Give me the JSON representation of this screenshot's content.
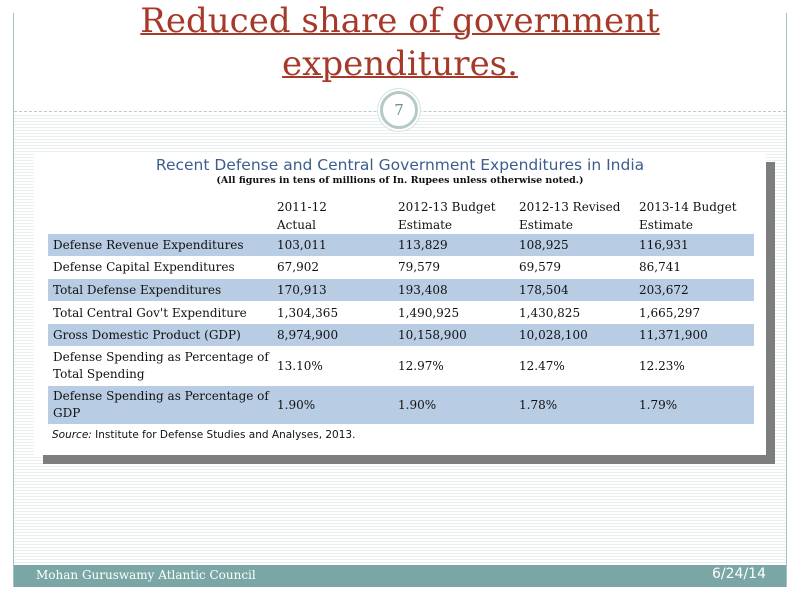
{
  "slide": {
    "title_line1": "Reduced share of government",
    "title_line2": "expenditures.",
    "page_number": "7"
  },
  "table": {
    "title": "Recent Defense and Central Government Expenditures in India",
    "subtitle": "(All figures in tens of millions of In. Rupees unless otherwise noted.)",
    "columns": [
      {
        "line1": "2011-12",
        "line2": "Actual"
      },
      {
        "line1": "2012-13 Budget",
        "line2": "Estimate"
      },
      {
        "line1": "2012-13 Revised",
        "line2": "Estimate"
      },
      {
        "line1": "2013-14 Budget",
        "line2": "Estimate"
      }
    ],
    "rows": [
      {
        "label": "Defense Revenue Expenditures",
        "values": [
          "103,011",
          "113,829",
          "108,925",
          "116,931"
        ]
      },
      {
        "label": "Defense Capital Expenditures",
        "values": [
          "67,902",
          "79,579",
          "69,579",
          "86,741"
        ]
      },
      {
        "label": "Total Defense Expenditures",
        "values": [
          "170,913",
          "193,408",
          "178,504",
          "203,672"
        ]
      },
      {
        "label": "Total Central Gov't Expenditure",
        "values": [
          "1,304,365",
          "1,490,925",
          "1,430,825",
          "1,665,297"
        ]
      },
      {
        "label": "Gross Domestic Product (GDP)",
        "values": [
          "8,974,900",
          "10,158,900",
          "10,028,100",
          "11,371,900"
        ]
      },
      {
        "label": "Defense Spending as Percentage of Total Spending",
        "values": [
          "13.10%",
          "12.97%",
          "12.47%",
          "12.23%"
        ]
      },
      {
        "label": "Defense Spending as Percentage of GDP",
        "values": [
          "1.90%",
          "1.90%",
          "1.78%",
          "1.79%"
        ]
      }
    ],
    "source_label": "Source:",
    "source_text": " Institute for Defense Studies and Analyses, 2013."
  },
  "footer": {
    "author": "Mohan Guruswamy Atlantic Council",
    "date": "6/24/14"
  },
  "colors": {
    "title": "#a63a2a",
    "table_title": "#3c5e8e",
    "row_shade": "#b8cce4",
    "footer_bg": "#7aa6a6"
  }
}
